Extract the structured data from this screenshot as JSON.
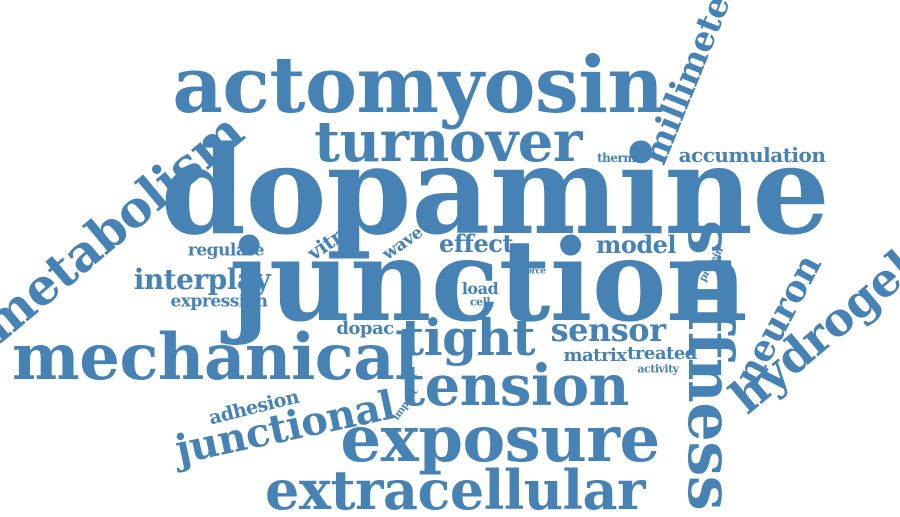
{
  "wordcloud": {
    "color": "#4682B4",
    "words": {
      "dopamine": "dopamine",
      "junction": "junction",
      "actomyosin": "actomyosin",
      "turnover": "turnover",
      "mechanical": "mechanical",
      "tension": "tension",
      "exposure": "exposure",
      "extracellular": "extracellular",
      "stiffness": "stiffness",
      "metabolism": "metabolism",
      "millimeter": "millimeter",
      "hydrogel": "hydrogel",
      "neuron": "neuron",
      "junctional": "junctional",
      "tight": "tight",
      "sensor": "sensor",
      "accumulation": "accumulation",
      "model": "model",
      "effect": "effect",
      "interplay": "interplay",
      "regulate": "regulate",
      "expression": "expression",
      "dopac": "dopac",
      "adhesion": "adhesion",
      "vitro": "vitro",
      "wave": "wave",
      "matrix": "matrix",
      "treated": "treated",
      "activity": "activity",
      "load": "load",
      "cell": "cell",
      "force": "force",
      "protein": "protein",
      "thermal": "thermal",
      "impact": "impact"
    }
  }
}
